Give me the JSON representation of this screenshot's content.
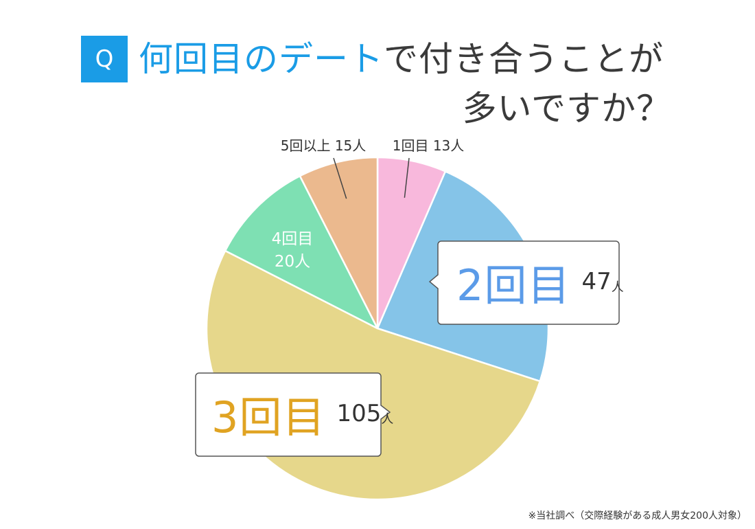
{
  "title": {
    "badge": "Q",
    "line1_accent": "何回目のデート",
    "line1_rest": "で付き合うことが",
    "line2": "多いですか？"
  },
  "note": "※当社調べ（交際経験がある成人男女200人対象）",
  "colors": {
    "accent": "#1a9ce6",
    "slice_1": "#f8b8dc",
    "slice_2": "#85c4e8",
    "slice_3": "#e6d78b",
    "slice_4": "#7ee0b3",
    "slice_5": "#ebb98e",
    "label_2": "#5b9be8",
    "label_3": "#e0a322"
  },
  "chart_data": {
    "type": "pie",
    "start": "12 o'clock",
    "direction": "clockwise",
    "slices": [
      {
        "label": "1回目",
        "value": 13,
        "display": "1回目 13人"
      },
      {
        "label": "2回目",
        "value": 47,
        "number": "47",
        "unit": "人"
      },
      {
        "label": "3回目",
        "value": 105,
        "number": "105",
        "unit": "人"
      },
      {
        "label": "4回目",
        "value": 20,
        "display_line1": "4回目",
        "display_line2": "20人"
      },
      {
        "label": "5回以上",
        "value": 15,
        "display": "5回以上 15人"
      }
    ]
  }
}
